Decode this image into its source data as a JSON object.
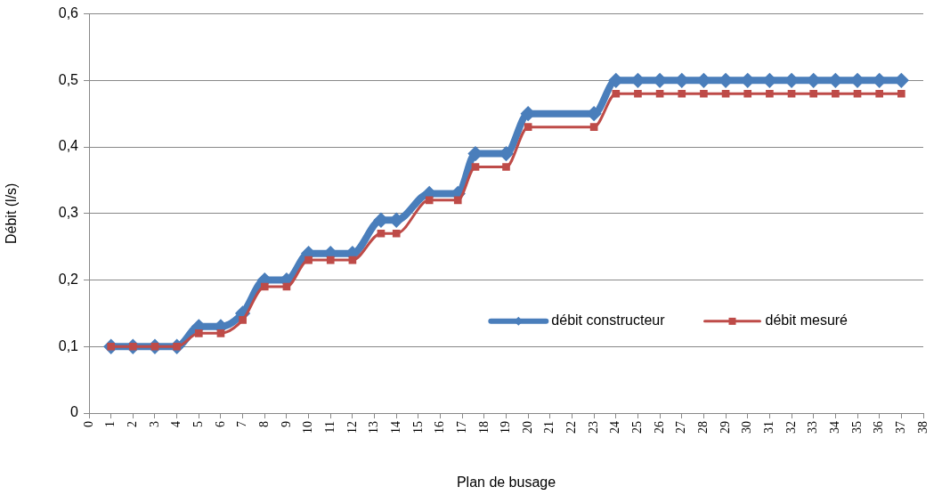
{
  "chart_data": {
    "type": "line",
    "xlabel": "Plan de busage",
    "ylabel": "Débit (l/s)",
    "x": [
      1,
      2,
      3,
      4,
      5,
      6,
      7,
      8,
      9,
      10,
      11,
      12,
      13.3,
      14,
      15.5,
      16.8,
      17.6,
      19,
      20,
      23,
      24,
      25,
      26,
      27,
      28,
      29,
      30,
      31,
      32,
      33,
      34,
      35,
      36,
      37
    ],
    "xlim": [
      0,
      38
    ],
    "xticks": [
      0,
      1,
      2,
      3,
      4,
      5,
      6,
      7,
      8,
      9,
      10,
      11,
      12,
      13,
      14,
      15,
      16,
      17,
      18,
      19,
      20,
      21,
      22,
      23,
      24,
      25,
      26,
      27,
      28,
      29,
      30,
      31,
      32,
      33,
      34,
      35,
      36,
      37,
      38
    ],
    "ylim": [
      0,
      0.6
    ],
    "yticks": [
      {
        "value": 0,
        "label": "0"
      },
      {
        "value": 0.1,
        "label": "0,1"
      },
      {
        "value": 0.2,
        "label": "0,2"
      },
      {
        "value": 0.3,
        "label": "0,3"
      },
      {
        "value": 0.4,
        "label": "0,4"
      },
      {
        "value": 0.5,
        "label": "0,5"
      },
      {
        "value": 0.6,
        "label": "0,6"
      }
    ],
    "grid": "y",
    "legend": "bottom right",
    "series": [
      {
        "name": "débit constructeur",
        "color": "#4a7ebb",
        "marker": "diamond",
        "values": [
          0.1,
          0.1,
          0.1,
          0.1,
          0.13,
          0.13,
          0.15,
          0.2,
          0.2,
          0.24,
          0.24,
          0.24,
          0.29,
          0.29,
          0.33,
          0.33,
          0.39,
          0.39,
          0.45,
          0.45,
          0.5,
          0.5,
          0.5,
          0.5,
          0.5,
          0.5,
          0.5,
          0.5,
          0.5,
          0.5,
          0.5,
          0.5,
          0.5,
          0.5
        ]
      },
      {
        "name": "débit mesuré",
        "color": "#be4b48",
        "marker": "square",
        "values": [
          0.1,
          0.1,
          0.1,
          0.1,
          0.12,
          0.12,
          0.14,
          0.19,
          0.19,
          0.23,
          0.23,
          0.23,
          0.27,
          0.27,
          0.32,
          0.32,
          0.37,
          0.37,
          0.43,
          0.43,
          0.48,
          0.48,
          0.48,
          0.48,
          0.48,
          0.48,
          0.48,
          0.48,
          0.48,
          0.48,
          0.48,
          0.48,
          0.48,
          0.48
        ]
      }
    ]
  }
}
